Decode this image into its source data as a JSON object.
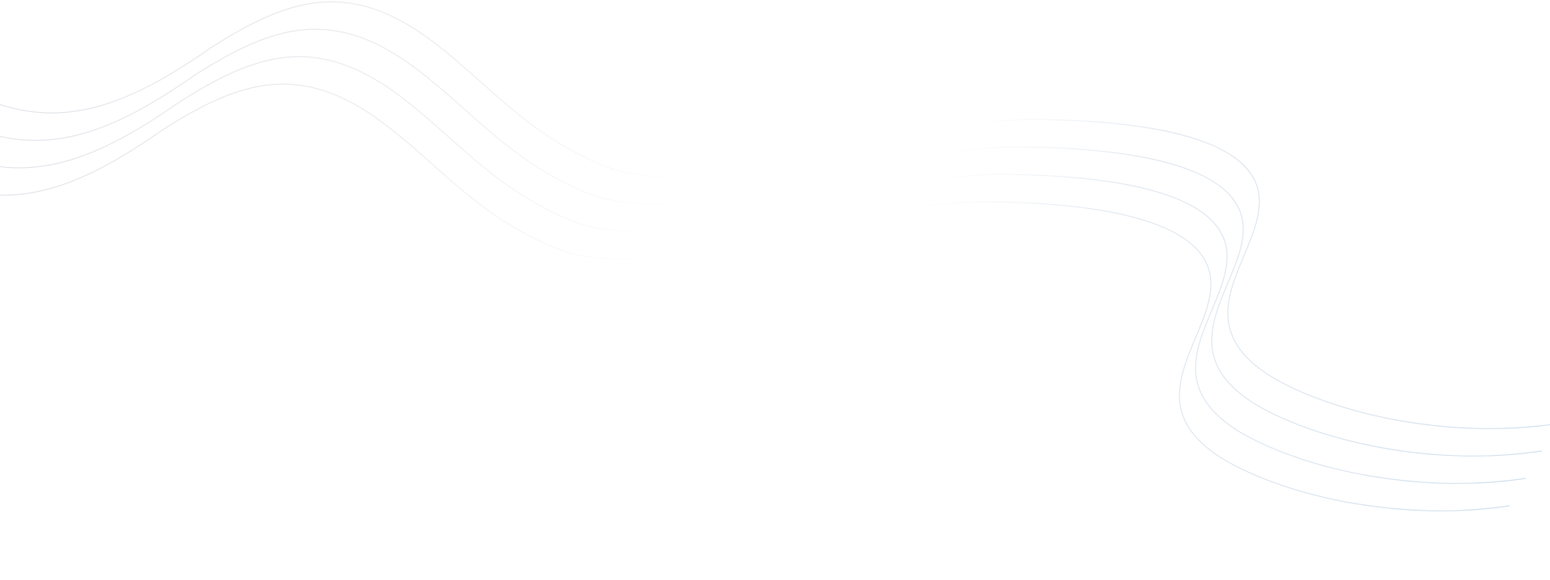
{
  "background": {
    "color": "#ffffff",
    "line_color_left": "#e3e6ea",
    "line_color_right": "#d6e3ee",
    "wave_line_count": 4
  }
}
